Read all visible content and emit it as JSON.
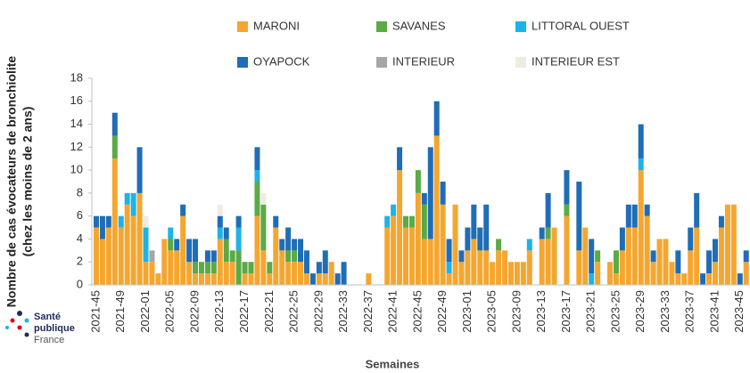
{
  "chart_data": {
    "type": "stacked_bar",
    "y_label": [
      "Nombre de cas évocateurs de bronchiolite",
      "(chez les moins de 2 ans)"
    ],
    "x_label": "Semaines",
    "categories": [
      "2021-45",
      null,
      null,
      null,
      "2021-49",
      null,
      null,
      null,
      "2022-01",
      null,
      null,
      null,
      "2022-05",
      null,
      null,
      null,
      "2022-09",
      null,
      null,
      null,
      "2022-13",
      null,
      null,
      null,
      "2022-17",
      null,
      null,
      null,
      "2022-21",
      null,
      null,
      null,
      "2022-25",
      null,
      null,
      null,
      "2022-29",
      null,
      null,
      null,
      "2022-33",
      null,
      null,
      null,
      "2022-37",
      null,
      null,
      null,
      "2022-41",
      null,
      null,
      null,
      "2022-45",
      null,
      null,
      null,
      "2022-49",
      null,
      null,
      null,
      "2023-01",
      null,
      null,
      null,
      "2023-05",
      null,
      null,
      null,
      "2023-09",
      null,
      null,
      null,
      "2023-13",
      null,
      null,
      null,
      "2023-17",
      null,
      null,
      null,
      "2023-21",
      null,
      null,
      null,
      "2023-25",
      null,
      null,
      null,
      "2023-29",
      null,
      null,
      null,
      "2023-33",
      null,
      null,
      null,
      "2023-37",
      null,
      null,
      null,
      "2023-41",
      null,
      null,
      null,
      "2023-45",
      null
    ],
    "series": [
      {
        "name": "MARONI",
        "color": "#f5a62f",
        "values": [
          5,
          4,
          5,
          11,
          5,
          7,
          6,
          8,
          2,
          2,
          1,
          4,
          3,
          3,
          6,
          2,
          1,
          1,
          1,
          1,
          4,
          2,
          2,
          0,
          1,
          1,
          6,
          3,
          1,
          5,
          3,
          2,
          2,
          2,
          1,
          0,
          1,
          1,
          2,
          0,
          0,
          0,
          0,
          0,
          1,
          0,
          0,
          5,
          6,
          10,
          5,
          5,
          8,
          4,
          4,
          13,
          7,
          1,
          7,
          2,
          3,
          4,
          3,
          3,
          2,
          3,
          3,
          2,
          2,
          2,
          3,
          0,
          4,
          4,
          5,
          0,
          6,
          0,
          3,
          5,
          0,
          2,
          0,
          2,
          1,
          3,
          5,
          5,
          10,
          6,
          2,
          4,
          4,
          2,
          1,
          1,
          3,
          5,
          0,
          1,
          2,
          5,
          7,
          7,
          0,
          2
        ]
      },
      {
        "name": "SAVANES",
        "color": "#5aaa46",
        "values": [
          0,
          0,
          0,
          2,
          0,
          0,
          0,
          0,
          0,
          0,
          0,
          0,
          1,
          0,
          0,
          0,
          1,
          1,
          1,
          1,
          0,
          2,
          1,
          3,
          1,
          1,
          3,
          4,
          1,
          0,
          0,
          1,
          1,
          0,
          0,
          0,
          0,
          0,
          0,
          0,
          0,
          0,
          0,
          0,
          0,
          0,
          0,
          0,
          0,
          0,
          1,
          1,
          2,
          3,
          0,
          0,
          0,
          0,
          0,
          0,
          0,
          0,
          0,
          0,
          0,
          1,
          0,
          0,
          0,
          0,
          0,
          0,
          0,
          1,
          0,
          0,
          1,
          0,
          0,
          0,
          0,
          1,
          0,
          0,
          2,
          0,
          0,
          0,
          0,
          0,
          0,
          0,
          0,
          0,
          0,
          0,
          0,
          0,
          0,
          0,
          0,
          0,
          0,
          0,
          0,
          0
        ]
      },
      {
        "name": "LITTORAL OUEST",
        "color": "#1db3e8",
        "values": [
          0,
          0,
          0,
          0,
          1,
          1,
          2,
          0,
          3,
          0,
          0,
          0,
          1,
          0,
          0,
          0,
          0,
          0,
          0,
          0,
          1,
          0,
          0,
          2,
          0,
          0,
          1,
          0,
          0,
          0,
          0,
          0,
          0,
          0,
          0,
          0,
          0,
          0,
          0,
          0,
          0,
          0,
          0,
          0,
          0,
          0,
          0,
          1,
          1,
          0,
          0,
          0,
          0,
          0,
          0,
          0,
          0,
          1,
          0,
          0,
          0,
          0,
          0,
          0,
          0,
          0,
          0,
          0,
          0,
          0,
          1,
          0,
          0,
          0,
          0,
          0,
          0,
          0,
          0,
          0,
          1,
          0,
          0,
          0,
          0,
          0,
          0,
          0,
          1,
          0,
          0,
          0,
          0,
          0,
          0,
          0,
          0,
          0,
          0,
          0,
          0,
          0,
          0,
          0,
          0,
          0
        ]
      },
      {
        "name": "OYAPOCK",
        "color": "#1f6db6",
        "values": [
          1,
          2,
          1,
          2,
          0,
          0,
          0,
          4,
          0,
          0,
          0,
          0,
          0,
          1,
          1,
          2,
          2,
          0,
          1,
          1,
          1,
          1,
          0,
          1,
          0,
          0,
          2,
          0,
          0,
          1,
          1,
          2,
          1,
          2,
          2,
          1,
          1,
          2,
          0,
          1,
          2,
          0,
          0,
          0,
          0,
          0,
          0,
          0,
          0,
          2,
          0,
          0,
          0,
          1,
          8,
          3,
          2,
          2,
          0,
          1,
          2,
          3,
          2,
          4,
          0,
          0,
          0,
          0,
          0,
          0,
          0,
          0,
          1,
          3,
          0,
          0,
          3,
          0,
          6,
          0,
          3,
          0,
          0,
          0,
          0,
          2,
          2,
          2,
          3,
          1,
          1,
          0,
          0,
          0,
          2,
          0,
          2,
          3,
          1,
          2,
          2,
          1,
          0,
          0,
          1,
          1
        ]
      },
      {
        "name": "INTERIEUR",
        "color": "#a6a6a6",
        "values": [
          0,
          0,
          0,
          0,
          0,
          0,
          0,
          0,
          0,
          1,
          0,
          0,
          0,
          0,
          0,
          0,
          0,
          0,
          0,
          0,
          0,
          0,
          0,
          0,
          0,
          0,
          0,
          0,
          0,
          0,
          0,
          0,
          0,
          0,
          0,
          0,
          0,
          0,
          0,
          0,
          0,
          0,
          0,
          0,
          0,
          0,
          0,
          0,
          0,
          0,
          0,
          0,
          0,
          0,
          0,
          0,
          0,
          0,
          0,
          0,
          0,
          0,
          0,
          0,
          0,
          0,
          0,
          0,
          0,
          0,
          0,
          0,
          0,
          0,
          0,
          0,
          0,
          0,
          0,
          0,
          0,
          0,
          0,
          0,
          0,
          0,
          0,
          0,
          0,
          0,
          0,
          0,
          0,
          0,
          0,
          0,
          0,
          0,
          0,
          0,
          0,
          0,
          0,
          0,
          0,
          0
        ]
      },
      {
        "name": "INTERIEUR EST",
        "color": "#eeece1",
        "values": [
          0,
          0,
          0,
          0,
          0,
          0,
          0,
          0,
          1,
          0,
          0,
          0,
          0,
          0,
          0,
          0,
          0,
          0,
          0,
          0,
          1,
          0,
          0,
          0,
          0,
          0,
          0,
          1,
          0,
          0,
          0,
          0,
          0,
          0,
          0,
          0,
          0,
          0,
          0,
          0,
          0,
          0,
          0,
          0,
          0,
          0,
          0,
          0,
          0,
          0,
          0,
          0,
          0,
          0,
          0,
          0,
          0,
          0,
          0,
          0,
          0,
          0,
          0,
          0,
          0,
          0,
          0,
          0,
          0,
          0,
          0,
          0,
          0,
          0,
          0,
          0,
          0,
          0,
          0,
          0,
          0,
          0,
          0,
          0,
          0,
          0,
          0,
          0,
          0,
          0,
          0,
          0,
          0,
          0,
          0,
          0,
          0,
          0,
          0,
          0,
          0,
          0,
          0,
          0,
          0,
          0
        ]
      }
    ],
    "ylim": [
      0,
      18
    ],
    "yticks": [
      0,
      2,
      4,
      6,
      8,
      10,
      12,
      14,
      16,
      18
    ],
    "grid": false
  },
  "logo": {
    "line1": "Santé",
    "line2": "publique",
    "line3": "France"
  }
}
